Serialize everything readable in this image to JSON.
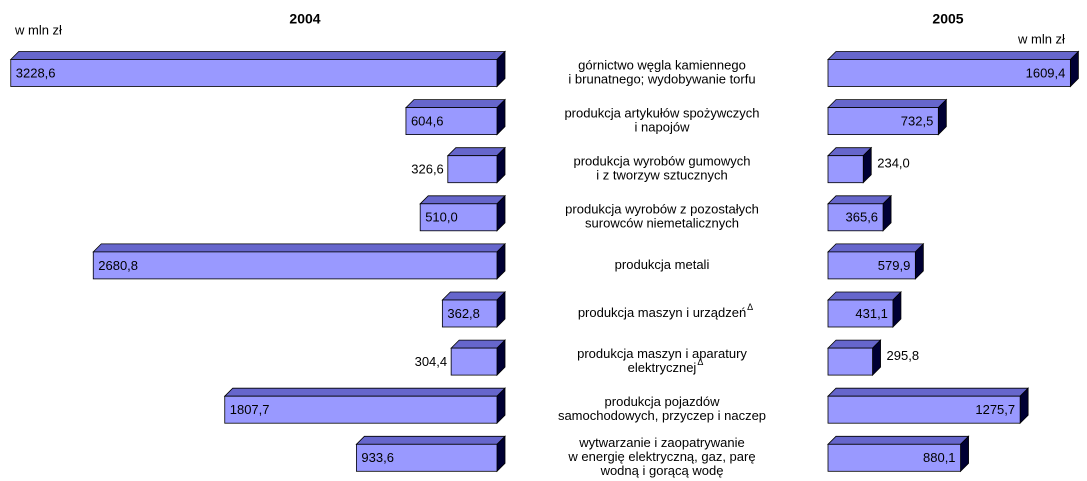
{
  "chart_data": {
    "type": "bar",
    "categories": [
      [
        "górnictwo węgla kamiennego",
        "i brunatnego; wydobywanie torfu"
      ],
      [
        "produkcja artykułów spożywczych",
        "i napojów"
      ],
      [
        "produkcja wyrobów gumowych",
        "i z tworzyw sztucznych"
      ],
      [
        "produkcja wyrobów z pozostałych",
        "surowców niemetalicznych"
      ],
      [
        "produkcja metali"
      ],
      [
        "produkcja maszyn i urządzeń"
      ],
      [
        "produkcja maszyn i aparatury",
        "elektrycznej"
      ],
      [
        "produkcja pojazdów",
        "samochodowych, przyczep i naczep"
      ],
      [
        "wytwarzanie i zaopatrywanie",
        "w energię elektryczną, gaz, parę",
        "wodną i gorącą wodę"
      ]
    ],
    "category_marks": [
      null,
      null,
      null,
      null,
      null,
      "Δ",
      "Δ",
      null,
      null
    ],
    "xlim": [
      0,
      3300
    ],
    "series": [
      {
        "name": "2004",
        "unit": "w mln zł",
        "color": "#9999ff",
        "values": [
          3228.6,
          604.6,
          326.6,
          510.0,
          2680.8,
          362.8,
          304.4,
          1807.7,
          933.6
        ],
        "value_labels": [
          "3228,6",
          "604,6",
          "326,6",
          "510,0",
          "2680,8",
          "362,8",
          "304,4",
          "1807,7",
          "933,6"
        ]
      },
      {
        "name": "2005",
        "unit": "w mln zł",
        "color": "#9999ff",
        "values": [
          1609.4,
          732.5,
          234.0,
          365.6,
          579.9,
          431.1,
          295.8,
          1275.7,
          880.1
        ],
        "value_labels": [
          "1609,4",
          "732,5",
          "234,0",
          "365,6",
          "579,9",
          "431,1",
          "295,8",
          "1275,7",
          "880,1"
        ]
      }
    ]
  }
}
